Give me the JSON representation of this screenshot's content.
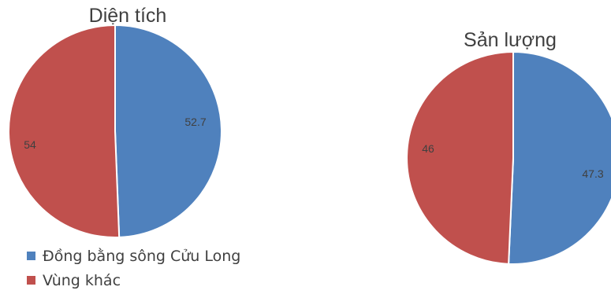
{
  "colors": {
    "series_1": "#4f81bd",
    "series_2": "#c0504d",
    "slice_border": "#ffffff"
  },
  "legend": {
    "placement": "bottom-left",
    "items": [
      {
        "label": "Đồng bằng sông Cửu Long",
        "color": "#4f81bd"
      },
      {
        "label": "Vùng khác",
        "color": "#c0504d"
      }
    ]
  },
  "chart_data": [
    {
      "type": "pie",
      "title": "Diện tích",
      "categories": [
        "Đồng bằng sông Cửu Long",
        "Vùng khác"
      ],
      "values": [
        52.7,
        54
      ],
      "data_labels": [
        "52.7",
        "54"
      ],
      "colors": [
        "#4f81bd",
        "#c0504d"
      ]
    },
    {
      "type": "pie",
      "title": "Sản lượng",
      "categories": [
        "Đồng bằng sông Cửu Long",
        "Vùng khác"
      ],
      "values": [
        47.3,
        46
      ],
      "data_labels": [
        "47.3",
        "46"
      ],
      "colors": [
        "#4f81bd",
        "#c0504d"
      ]
    }
  ]
}
